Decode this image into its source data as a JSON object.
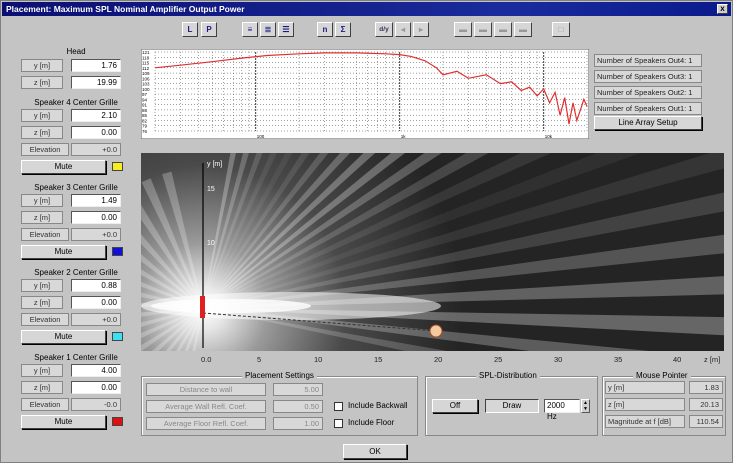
{
  "window": {
    "title": "Placement: Maximum SPL Nominal Amplifier Output Power",
    "close": "x"
  },
  "toolbar": {
    "l": "L",
    "p": "P",
    "n": "n",
    "sigma": "Σ",
    "dy": "d/y"
  },
  "left": {
    "head": {
      "title": "Head",
      "y_label": "y [m]",
      "y_value": "1.76",
      "z_label": "z [m]",
      "z_value": "19.99"
    },
    "speakers": [
      {
        "title": "Speaker 4 Center Grille",
        "y_label": "y [m]",
        "y_value": "2.10",
        "z_label": "z [m]",
        "z_value": "0.00",
        "elev_label": "Elevation",
        "elev_value": "+0.0",
        "mute": "Mute",
        "color": "#f6ee22"
      },
      {
        "title": "Speaker 3 Center Grille",
        "y_label": "y [m]",
        "y_value": "1.49",
        "z_label": "z [m]",
        "z_value": "0.00",
        "elev_label": "Elevation",
        "elev_value": "+0.0",
        "mute": "Mute",
        "color": "#1010d8"
      },
      {
        "title": "Speaker 2 Center Grille",
        "y_label": "y [m]",
        "y_value": "0.88",
        "z_label": "z [m]",
        "z_value": "0.00",
        "elev_label": "Elevation",
        "elev_value": "+0.0",
        "mute": "Mute",
        "color": "#3de0f0"
      },
      {
        "title": "Speaker 1 Center Grille",
        "y_label": "y [m]",
        "y_value": "4.00",
        "z_label": "z [m]",
        "z_value": "0.00",
        "elev_label": "Elevation",
        "elev_value": "-0.0",
        "mute": "Mute",
        "color": "#e01010"
      }
    ]
  },
  "right": {
    "outs": [
      "Number of Speakers Out4: 1",
      "Number of Speakers Out3: 1",
      "Number of Speakers Out2: 1",
      "Number of Speakers Out1: 1"
    ],
    "line_array_button": "Line Array Setup"
  },
  "plot": {
    "y_axis_label": "y [m]",
    "y_ticks": [
      "15",
      "10"
    ],
    "x_ticks": [
      "0.0",
      "5",
      "10",
      "15",
      "20",
      "25",
      "30",
      "35",
      "40"
    ],
    "x_axis_label": "z [m]"
  },
  "placement": {
    "title": "Placement Settings",
    "distance_label": "Distance to wall",
    "distance_value": "5.00",
    "wall_refl_label": "Average Wall Refl. Coef.",
    "wall_refl_value": "0.50",
    "floor_refl_label": "Average Floor Refl. Coef.",
    "floor_refl_value": "1.00",
    "include_backwall": "Include Backwall",
    "include_floor": "Include Floor"
  },
  "spl": {
    "title": "SPL-Distribution",
    "off": "Off",
    "draw": "Draw",
    "freq": "2000 Hz"
  },
  "mouse": {
    "title": "Mouse Pointer",
    "y_label": "y [m]",
    "y_value": "1.83",
    "z_label": "z [m]",
    "z_value": "20.13",
    "mag_label": "Magnitude at f [dB]",
    "mag_value": "110.54"
  },
  "ok": "OK",
  "chart_data": {
    "type": "line",
    "y_ticks": [
      "121",
      "118",
      "115",
      "112",
      "109",
      "106",
      "103",
      "100",
      "97",
      "94",
      "91",
      "88",
      "85",
      "82",
      "79",
      "76"
    ],
    "x_ticks": [
      "100",
      "1k",
      "10k"
    ],
    "ylim": [
      76,
      121
    ],
    "xlim": [
      20,
      20000
    ],
    "series": [
      {
        "color": "#e03030",
        "x": [
          20,
          30,
          50,
          80,
          120,
          200,
          300,
          500,
          800,
          1000,
          1200,
          1500,
          1800,
          2000,
          2500,
          3000,
          4000,
          5000,
          6000,
          7000,
          8000,
          9000,
          10000,
          11000,
          12000,
          13000,
          14000,
          15000,
          16000,
          17000,
          18000,
          19000,
          20000
        ],
        "y": [
          112,
          113.5,
          115.5,
          117.5,
          119,
          120,
          120.5,
          120.5,
          120,
          119.5,
          118.5,
          116,
          112,
          108,
          110,
          106,
          108,
          103,
          104,
          99,
          101,
          96,
          100,
          92,
          98,
          85,
          95,
          80,
          92,
          82,
          88,
          94,
          90
        ]
      }
    ]
  }
}
